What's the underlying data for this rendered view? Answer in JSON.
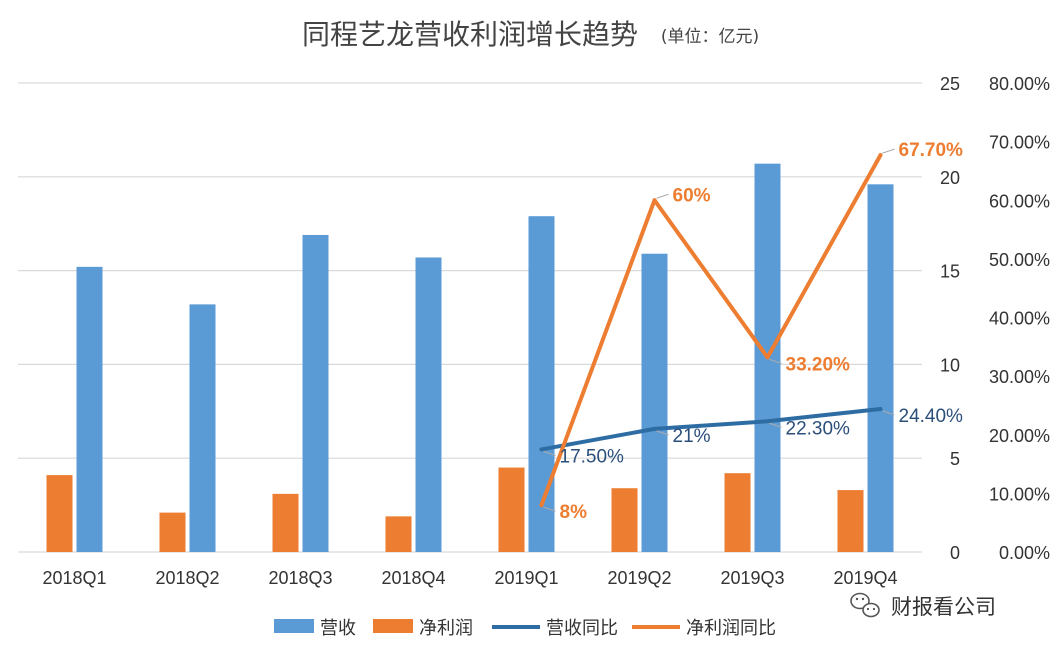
{
  "title": "同程艺龙营收利润增长趋势",
  "unit": "(单位：亿元)",
  "watermark": "财报看公司",
  "colors": {
    "revenue": "#5B9BD5",
    "profit": "#ED7D31",
    "revenue_yoy": "#2E6DA4",
    "profit_yoy": "#ED7D31",
    "grid": "#D9D9D9"
  },
  "chart_data": {
    "type": "bar",
    "categories": [
      "2018Q1",
      "2018Q2",
      "2018Q3",
      "2018Q4",
      "2019Q1",
      "2019Q2",
      "2019Q3",
      "2019Q4"
    ],
    "series": [
      {
        "name": "营收",
        "kind": "bar",
        "axis": "left",
        "color": "#5B9BD5",
        "values": [
          15.2,
          13.2,
          16.9,
          15.7,
          17.9,
          15.9,
          20.7,
          19.6
        ]
      },
      {
        "name": "净利润",
        "kind": "bar",
        "axis": "left",
        "color": "#ED7D31",
        "values": [
          4.1,
          2.1,
          3.1,
          1.9,
          4.5,
          3.4,
          4.2,
          3.3
        ]
      },
      {
        "name": "营收同比",
        "kind": "line",
        "axis": "right",
        "color": "#2E6DA4",
        "x": [
          "2019Q1",
          "2019Q2",
          "2019Q3",
          "2019Q4"
        ],
        "values": [
          17.5,
          21,
          22.3,
          24.4
        ],
        "labels": [
          "17.50%",
          "21%",
          "22.30%",
          "24.40%"
        ]
      },
      {
        "name": "净利润同比",
        "kind": "line",
        "axis": "right",
        "color": "#ED7D31",
        "x": [
          "2019Q1",
          "2019Q2",
          "2019Q3",
          "2019Q4"
        ],
        "values": [
          8,
          60,
          33.2,
          67.7
        ],
        "labels": [
          "8%",
          "60%",
          "33.20%",
          "67.70%"
        ]
      }
    ],
    "y_left": {
      "min": 0,
      "max": 25,
      "ticks": [
        "0",
        "5",
        "10",
        "15",
        "20",
        "25"
      ]
    },
    "y_right": {
      "min": 0,
      "max": 80,
      "ticks": [
        "0.00%",
        "10.00%",
        "20.00%",
        "30.00%",
        "40.00%",
        "50.00%",
        "60.00%",
        "70.00%",
        "80.00%"
      ]
    },
    "grid": true,
    "legend_position": "bottom"
  }
}
